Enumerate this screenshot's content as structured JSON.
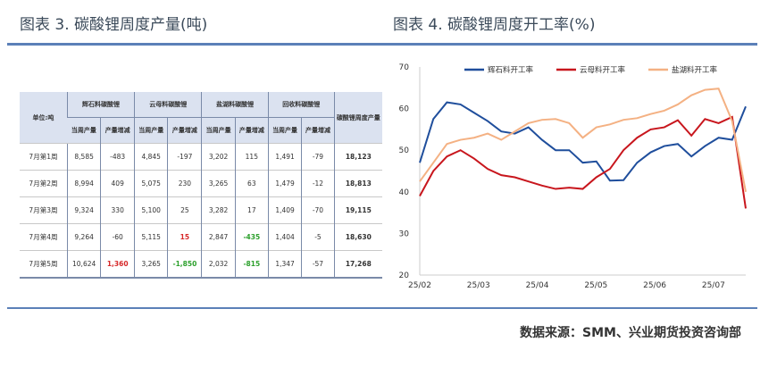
{
  "left_title": "图表 3.  碳酸锂周度产量(吨)",
  "right_title": "图表 4.  碳酸锂周度开工率(%)",
  "table": {
    "unit": "单位:吨",
    "groups": [
      "辉石料碳酸锂",
      "云母料碳酸锂",
      "盐湖料碳酸锂",
      "回收料碳酸锂"
    ],
    "total_header": "碳酸锂周度产量",
    "sub": [
      "当周产量",
      "产量增减"
    ],
    "rows": [
      {
        "week": "7月第1周",
        "v": [
          "8,585",
          "-483",
          "4,845",
          "-197",
          "3,202",
          "115",
          "1,491",
          "-79"
        ],
        "total": "18,123"
      },
      {
        "week": "7月第2周",
        "v": [
          "8,994",
          "409",
          "5,075",
          "230",
          "3,265",
          "63",
          "1,479",
          "-12"
        ],
        "total": "18,813"
      },
      {
        "week": "7月第3周",
        "v": [
          "9,324",
          "330",
          "5,100",
          "25",
          "3,282",
          "17",
          "1,409",
          "-70"
        ],
        "total": "19,115"
      },
      {
        "week": "7月第4周",
        "v": [
          "9,264",
          "-60",
          "5,115",
          "15",
          "2,847",
          "-435",
          "1,404",
          "-5"
        ],
        "total": "18,630"
      },
      {
        "week": "7月第5周",
        "v": [
          "10,624",
          "1,360",
          "3,265",
          "-1,850",
          "2,032",
          "-815",
          "1,347",
          "-57"
        ],
        "total": "17,268"
      }
    ],
    "highlight": {
      "3-3": "pos",
      "3-5": "neg",
      "4-1": "pos",
      "4-3": "neg",
      "4-5": "neg"
    }
  },
  "chart_data": {
    "type": "line",
    "title": "",
    "xlabel": "",
    "ylabel": "",
    "ylim": [
      20,
      70
    ],
    "yticks": [
      20,
      30,
      40,
      50,
      60,
      70
    ],
    "xtick_labels": [
      "25/02",
      "25/03",
      "25/04",
      "25/05",
      "25/06",
      "25/07"
    ],
    "legend": "top",
    "series": [
      {
        "name": "辉石料开工率",
        "color": "#1f4e9c",
        "values": [
          47,
          57.5,
          61.5,
          61,
          59,
          57,
          54.5,
          54,
          55.5,
          52.5,
          50,
          50,
          47,
          47.3,
          42.7,
          42.8,
          47,
          49.5,
          51,
          51.5,
          48.5,
          51,
          53,
          52.5,
          60.5
        ]
      },
      {
        "name": "云母料开工率",
        "color": "#c8161d",
        "values": [
          39,
          45,
          48.5,
          50,
          48,
          45.5,
          44,
          43.5,
          42.5,
          41.5,
          40.7,
          41,
          40.7,
          43.5,
          45.5,
          50,
          53,
          55,
          55.5,
          57.2,
          53.5,
          57.5,
          56.5,
          58,
          36
        ]
      },
      {
        "name": "盐湖料开工率",
        "color": "#f4b183",
        "values": [
          42.5,
          47,
          51.5,
          52.5,
          53,
          54,
          52.5,
          54.5,
          56.5,
          57.3,
          57.5,
          56.5,
          53,
          55.5,
          56.2,
          57.3,
          57.7,
          58.7,
          59.5,
          61,
          63.2,
          64.5,
          64.8,
          57,
          40
        ]
      }
    ]
  },
  "source": "数据来源：SMM、兴业期货投资咨询部"
}
